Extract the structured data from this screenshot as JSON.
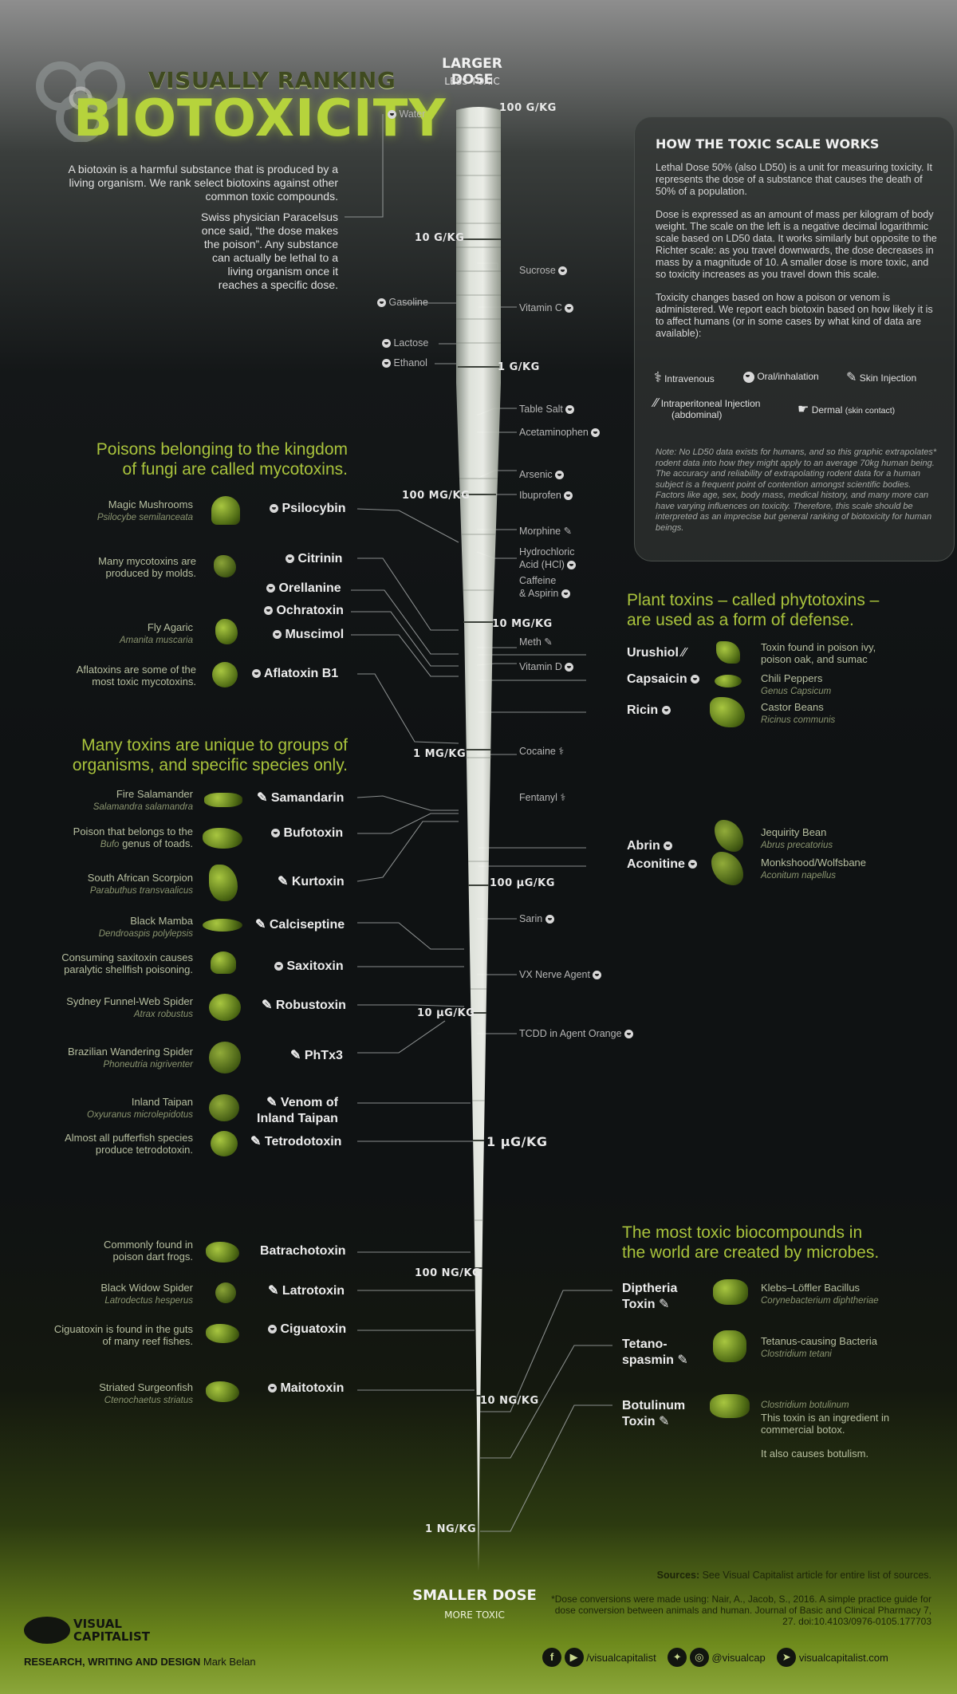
{
  "header": {
    "title_line1": "VISUALLY RANKING",
    "title_line2": "BIOTOXICITY",
    "intro": "A biotoxin is a harmful substance that is produced by a living organism. We rank select biotoxins against other common toxic compounds.",
    "quote": "Swiss physician Paracelsus once said, “the dose makes the poison”. Any substance can actually be lethal to a living organism once it reaches a specific dose."
  },
  "scale": {
    "top_title": "LARGER DOSE",
    "top_sub": "LESS TOXIC",
    "bottom_title": "SMALLER DOSE",
    "bottom_sub": "MORE TOXIC",
    "labels": [
      "100 G/KG",
      "10 G/KG",
      "1 G/KG",
      "100 MG/KG",
      "10 MG/KG",
      "1 MG/KG",
      "100 µG/KG",
      "10 µG/KG",
      "1 µG/KG",
      "100 NG/KG",
      "10 NG/KG",
      "1 NG/KG"
    ]
  },
  "panel": {
    "title": "HOW THE TOXIC SCALE WORKS",
    "p1": "Lethal Dose 50% (also LD50) is a unit for measuring toxicity. It represents the dose of a substance that causes the death of 50% of a population.",
    "p2": "Dose is expressed as an amount of mass per kilogram of body weight. The scale on the left is a negative decimal logarithmic scale based on LD50 data. It works similarly but opposite to the Richter scale: as you travel downwards, the dose decreases in mass by a magnitude of 10. A smaller dose is more toxic, and so toxicity increases as you travel down this scale.",
    "p3": "Toxicity changes based on how a poison or venom is administered. We report each biotoxin based on how likely it is to affect humans (or in some cases by what kind of data are available):",
    "legend": [
      "Intravenous",
      "Oral/inhalation",
      "Skin Injection",
      "Intraperitoneal Injection",
      "(abdominal)",
      "Dermal",
      "(skin contact)"
    ],
    "note": "Note: No LD50 data exists for humans, and so this graphic extrapolates* rodent data into how they might apply to an average 70kg human being. The accuracy and reliability of extrapolating rodent data for a human subject is a frequent point of contention amongst scientific bodies. Factors like age, sex, body mass, medical history, and many more can have varying influences on toxicity. Therefore, this scale should be interpreted as an imprecise but general ranking of biotoxicity for human beings."
  },
  "compounds_left": [
    "Water",
    "Gasoline",
    "Lactose",
    "Ethanol"
  ],
  "compounds_right": [
    "Sucrose",
    "Vitamin C",
    "Table Salt",
    "Acetaminophen",
    "Arsenic",
    "Ibuprofen",
    "Morphine",
    "Hydrochloric",
    "Acid (HCl)",
    "Caffeine",
    "& Aspirin",
    "Meth",
    "Vitamin D",
    "Cocaine",
    "Fentanyl",
    "Sarin",
    "VX Nerve Agent",
    "TCDD in Agent Orange"
  ],
  "fungi": {
    "heading": [
      "Poisons belonging to the kingdom",
      "of fungi are called mycotoxins."
    ],
    "items": [
      {
        "desc": "Magic Mushrooms",
        "species": "Psilocybe semilanceata",
        "toxin": "Psilocybin"
      },
      {
        "desc": "Many mycotoxins are produced by molds.",
        "species": "",
        "toxin": "Citrinin"
      },
      {
        "desc": "",
        "species": "",
        "toxin": "Orellanine"
      },
      {
        "desc": "",
        "species": "",
        "toxin": "Ochratoxin"
      },
      {
        "desc": "Fly Agaric",
        "species": "Amanita muscaria",
        "toxin": "Muscimol"
      },
      {
        "desc": "Aflatoxins are some of the most toxic mycotoxins.",
        "species": "",
        "toxin": "Aflatoxin B1"
      }
    ]
  },
  "species": {
    "heading": [
      "Many toxins are unique to groups of",
      "organisms, and specific species only."
    ],
    "items": [
      {
        "desc": "Fire Salamander",
        "species": "Salamandra salamandra",
        "toxin": "Samandarin"
      },
      {
        "desc": "Poison that belongs to the",
        "species": "Bufo",
        "desc2": "genus of toads.",
        "toxin": "Bufotoxin"
      },
      {
        "desc": "South African Scorpion",
        "species": "Parabuthus transvaalicus",
        "toxin": "Kurtoxin"
      },
      {
        "desc": "Black Mamba",
        "species": "Dendroaspis polylepsis",
        "toxin": "Calciseptine"
      },
      {
        "desc": "Consuming saxitoxin causes paralytic shellfish poisoning.",
        "species": "",
        "toxin": "Saxitoxin"
      },
      {
        "desc": "Sydney Funnel-Web Spider",
        "species": "Atrax robustus",
        "toxin": "Robustoxin"
      },
      {
        "desc": "Brazilian Wandering Spider",
        "species": "Phoneutria nigriventer",
        "toxin": "PhTx3"
      },
      {
        "desc": "Inland Taipan",
        "species": "Oxyuranus microlepidotus",
        "toxin": "Venom of",
        "toxin2": "Inland Taipan"
      },
      {
        "desc": "Almost all pufferfish species produce tetrodotoxin.",
        "species": "",
        "toxin": "Tetrodotoxin"
      },
      {
        "desc": "Commonly found in poison dart frogs.",
        "species": "",
        "toxin": "Batrachotoxin"
      },
      {
        "desc": "Black Widow Spider",
        "species": "Latrodectus hesperus",
        "toxin": "Latrotoxin"
      },
      {
        "desc": "Ciguatoxin is found in the guts of many reef fishes.",
        "species": "",
        "toxin": "Ciguatoxin"
      },
      {
        "desc": "Striated Surgeonfish",
        "species": "Ctenochaetus striatus",
        "toxin": "Maitotoxin"
      }
    ]
  },
  "plants": {
    "heading": [
      "Plant toxins – called phytotoxins –",
      "are used as a form of defense."
    ],
    "items": [
      {
        "toxin": "Urushiol",
        "desc": "Toxin found in poison ivy, poison oak, and sumac",
        "species": ""
      },
      {
        "toxin": "Capsaicin",
        "desc": "Chili Peppers",
        "species": "Genus Capsicum"
      },
      {
        "toxin": "Ricin",
        "desc": "Castor Beans",
        "species": "Ricinus communis"
      },
      {
        "toxin": "Abrin",
        "desc": "Jequirity Bean",
        "species": "Abrus precatorius"
      },
      {
        "toxin": "Aconitine",
        "desc": "Monkshood/Wolfsbane",
        "species": "Aconitum napellus"
      }
    ]
  },
  "microbes": {
    "heading": [
      "The most toxic biocompounds in",
      "the world are created by microbes."
    ],
    "items": [
      {
        "toxin": "Diptheria",
        "toxin2": "Toxin",
        "desc": "Klebs–Löffler Bacillus",
        "species": "Corynebacterium diphtheriae"
      },
      {
        "toxin": "Tetano-",
        "toxin2": "spasmin",
        "desc": "Tetanus-causing Bacteria",
        "species": "Clostridium tetani"
      },
      {
        "toxin": "Botulinum",
        "toxin2": "Toxin",
        "desc": "This toxin is an ingredient in commercial botox.",
        "desc2": "It also causes botulism.",
        "species": "Clostridium botulinum"
      }
    ]
  },
  "footer": {
    "sources_bold": "Sources:",
    "sources": "See Visual Capitalist article for entire list of sources.",
    "conv": "*Dose conversions were made using: Nair, A., Jacob, S., 2016. A simple practice guide for dose conversion between animals and human. Journal of Basic and Clinical Pharmacy 7, 27. doi:10.4103/0976-0105.177703",
    "logo": [
      "VISUAL",
      "CAPITALIST"
    ],
    "credit_bold": "RESEARCH, WRITING AND DESIGN",
    "credit": "Mark Belan",
    "social1": "/visualcapitalist",
    "social2": "@visualcap",
    "site": "visualcapitalist.com"
  }
}
